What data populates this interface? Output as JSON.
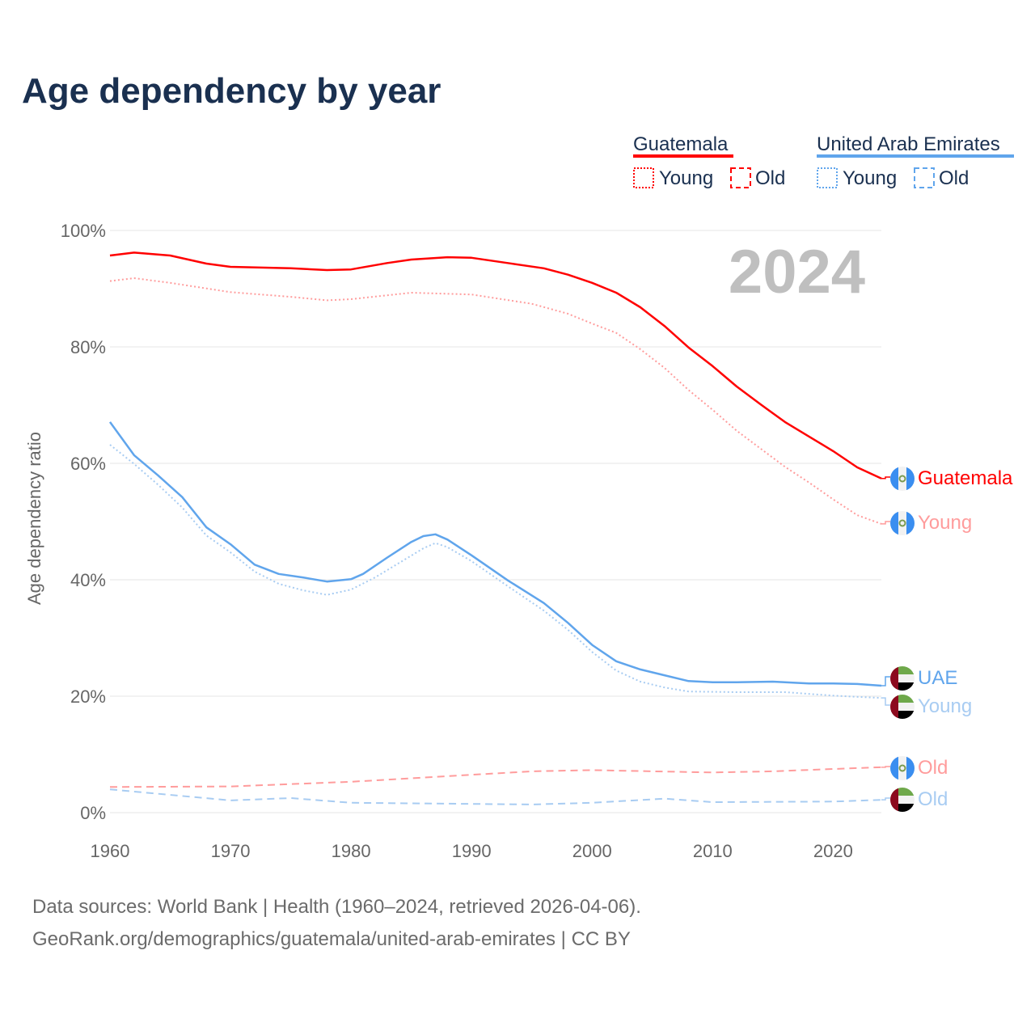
{
  "title": "Age dependency by year",
  "year_watermark": "2024",
  "sources": [
    "Data sources: World Bank | Health (1960–2024, retrieved 2026-04-06).",
    "GeoRank.org/demographics/guatemala/united-arab-emirates | CC BY"
  ],
  "legend": {
    "groups": [
      {
        "name": "Guatemala",
        "color": "#ff0000",
        "young_label": "Young",
        "old_label": "Old"
      },
      {
        "name": "United Arab Emirates",
        "color": "#60a5ec",
        "young_label": "Young",
        "old_label": "Old"
      }
    ]
  },
  "end_labels": [
    {
      "text": "Guatemala",
      "color": "#ff0000",
      "flag": "guatemala-flag-icon"
    },
    {
      "text": "Young",
      "color": "#ff9c9c",
      "flag": "guatemala-flag-icon"
    },
    {
      "text": "UAE",
      "color": "#60a5ec",
      "flag": "uae-flag-icon"
    },
    {
      "text": "Young",
      "color": "#a8ccf2",
      "flag": "uae-flag-icon"
    },
    {
      "text": "Old",
      "color": "#ff9c9c",
      "flag": "guatemala-flag-icon"
    },
    {
      "text": "Old",
      "color": "#a8ccf2",
      "flag": "uae-flag-icon"
    }
  ],
  "chart_data": {
    "type": "line",
    "title": "Age dependency by year",
    "xlabel": "",
    "ylabel": "Age dependency ratio",
    "xlim": [
      1960,
      2024
    ],
    "ylim": [
      0,
      100
    ],
    "xticks": [
      "1960",
      "1970",
      "1980",
      "1990",
      "2000",
      "2010",
      "2020"
    ],
    "yticks": [
      "0%",
      "20%",
      "40%",
      "60%",
      "80%",
      "100%"
    ],
    "grid": true,
    "series": [
      {
        "name": "Guatemala",
        "style": "solid",
        "color": "#ff0000",
        "points": [
          [
            1960,
            95.7
          ],
          [
            1962,
            96.2
          ],
          [
            1965,
            95.7
          ],
          [
            1968,
            94.3
          ],
          [
            1970,
            93.75
          ],
          [
            1975,
            93.5
          ],
          [
            1978,
            93.2
          ],
          [
            1980,
            93.3
          ],
          [
            1983,
            94.4
          ],
          [
            1985,
            95
          ],
          [
            1988,
            95.4
          ],
          [
            1990,
            95.3
          ],
          [
            1993,
            94.4
          ],
          [
            1996,
            93.5
          ],
          [
            1998,
            92.4
          ],
          [
            2000,
            91
          ],
          [
            2002,
            89.3
          ],
          [
            2004,
            86.8
          ],
          [
            2006,
            83.6
          ],
          [
            2008,
            79.9
          ],
          [
            2010,
            76.7
          ],
          [
            2012,
            73.2
          ],
          [
            2014,
            70.1
          ],
          [
            2016,
            67.1
          ],
          [
            2018,
            64.6
          ],
          [
            2020,
            62.1
          ],
          [
            2022,
            59.3
          ],
          [
            2024,
            57.4
          ]
        ]
      },
      {
        "name": "Guatemala Young",
        "style": "dotted",
        "color": "#ff9c9c",
        "points": [
          [
            1960,
            91.3
          ],
          [
            1962,
            91.8
          ],
          [
            1965,
            91
          ],
          [
            1970,
            89.4
          ],
          [
            1975,
            88.6
          ],
          [
            1978,
            88
          ],
          [
            1980,
            88.2
          ],
          [
            1985,
            89.3
          ],
          [
            1990,
            89
          ],
          [
            1995,
            87.4
          ],
          [
            1998,
            85.7
          ],
          [
            2000,
            84
          ],
          [
            2002,
            82.4
          ],
          [
            2004,
            79.6
          ],
          [
            2006,
            76.4
          ],
          [
            2008,
            72.6
          ],
          [
            2010,
            69.2
          ],
          [
            2012,
            65.6
          ],
          [
            2014,
            62.5
          ],
          [
            2016,
            59.4
          ],
          [
            2018,
            56.7
          ],
          [
            2020,
            53.8
          ],
          [
            2022,
            51.1
          ],
          [
            2024,
            49.6
          ]
        ]
      },
      {
        "name": "Guatemala Old",
        "style": "dashed",
        "color": "#ff9c9c",
        "points": [
          [
            1960,
            4.4
          ],
          [
            1970,
            4.5
          ],
          [
            1980,
            5.3
          ],
          [
            1990,
            6.5
          ],
          [
            1995,
            7.1
          ],
          [
            2000,
            7.3
          ],
          [
            2005,
            7.1
          ],
          [
            2010,
            6.9
          ],
          [
            2015,
            7.1
          ],
          [
            2020,
            7.5
          ],
          [
            2024,
            7.8
          ]
        ]
      },
      {
        "name": "UAE",
        "style": "solid",
        "color": "#60a5ec",
        "points": [
          [
            1960,
            67.1
          ],
          [
            1962,
            61.4
          ],
          [
            1964,
            57.9
          ],
          [
            1966,
            54.2
          ],
          [
            1968,
            49
          ],
          [
            1970,
            46.1
          ],
          [
            1972,
            42.6
          ],
          [
            1974,
            41
          ],
          [
            1976,
            40.4
          ],
          [
            1978,
            39.7
          ],
          [
            1980,
            40.1
          ],
          [
            1981,
            41
          ],
          [
            1983,
            43.8
          ],
          [
            1985,
            46.5
          ],
          [
            1986,
            47.5
          ],
          [
            1987,
            47.8
          ],
          [
            1988,
            46.9
          ],
          [
            1990,
            44.2
          ],
          [
            1993,
            39.9
          ],
          [
            1996,
            36
          ],
          [
            1998,
            32.6
          ],
          [
            2000,
            28.8
          ],
          [
            2002,
            26
          ],
          [
            2004,
            24.6
          ],
          [
            2006,
            23.6
          ],
          [
            2008,
            22.6
          ],
          [
            2010,
            22.4
          ],
          [
            2012,
            22.4
          ],
          [
            2015,
            22.5
          ],
          [
            2018,
            22.2
          ],
          [
            2020,
            22.2
          ],
          [
            2022,
            22.1
          ],
          [
            2024,
            21.8
          ]
        ]
      },
      {
        "name": "UAE Young",
        "style": "dotted",
        "color": "#a8ccf2",
        "points": [
          [
            1960,
            63.2
          ],
          [
            1962,
            59.9
          ],
          [
            1964,
            56.3
          ],
          [
            1966,
            52.4
          ],
          [
            1968,
            47.6
          ],
          [
            1970,
            44.7
          ],
          [
            1972,
            41.4
          ],
          [
            1974,
            39.3
          ],
          [
            1976,
            38.2
          ],
          [
            1978,
            37.4
          ],
          [
            1980,
            38.3
          ],
          [
            1982,
            40.4
          ],
          [
            1984,
            42.9
          ],
          [
            1986,
            45.4
          ],
          [
            1987,
            46.3
          ],
          [
            1988,
            45.6
          ],
          [
            1990,
            43.2
          ],
          [
            1993,
            38.9
          ],
          [
            1996,
            34.7
          ],
          [
            1998,
            31.4
          ],
          [
            2000,
            27.6
          ],
          [
            2002,
            24.4
          ],
          [
            2004,
            22.5
          ],
          [
            2006,
            21.5
          ],
          [
            2008,
            20.8
          ],
          [
            2012,
            20.7
          ],
          [
            2016,
            20.7
          ],
          [
            2020,
            20.1
          ],
          [
            2024,
            19.7
          ]
        ]
      },
      {
        "name": "UAE Old",
        "style": "dashed",
        "color": "#a8ccf2",
        "points": [
          [
            1960,
            4.0
          ],
          [
            1970,
            2.1
          ],
          [
            1975,
            2.5
          ],
          [
            1980,
            1.7
          ],
          [
            1990,
            1.5
          ],
          [
            1995,
            1.4
          ],
          [
            2000,
            1.7
          ],
          [
            2006,
            2.4
          ],
          [
            2010,
            1.8
          ],
          [
            2020,
            1.9
          ],
          [
            2024,
            2.2
          ]
        ]
      }
    ]
  }
}
